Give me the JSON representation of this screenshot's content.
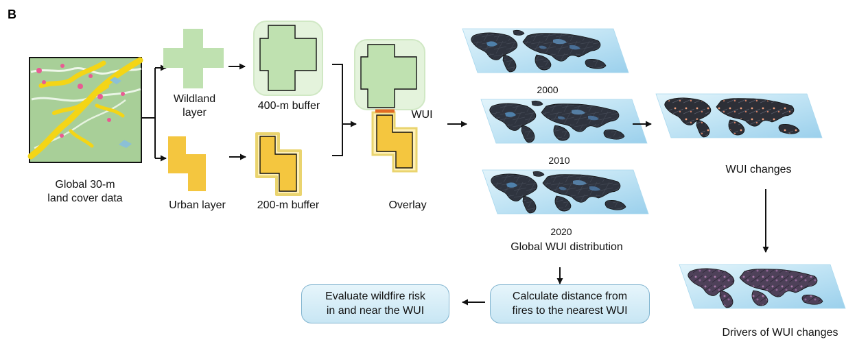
{
  "figure": {
    "panel_label": "B",
    "land_cover": {
      "label_line1": "Global 30-m",
      "label_line2": "land cover data"
    },
    "wildland": {
      "label_line1": "Wildland",
      "label_line2": "layer",
      "buffer_label": "400-m buffer"
    },
    "urban": {
      "label": "Urban layer",
      "buffer_label": "200-m buffer"
    },
    "overlay": {
      "wui_label": "WUI",
      "label": "Overlay"
    },
    "maps": {
      "years": [
        "2000",
        "2010",
        "2020"
      ],
      "distribution_label": "Global WUI distribution"
    },
    "changes": {
      "label": "WUI changes",
      "drivers_label": "Drivers of WUI changes"
    },
    "actions": {
      "distance_line1": "Calculate distance from",
      "distance_line2": "fires to the nearest WUI",
      "risk_line1": "Evaluate wildfire risk",
      "risk_line2": "in and near the WUI"
    }
  },
  "colors": {
    "wildland_fill": "#bfe1b0",
    "wildland_buffer": "#e5f4dd",
    "urban_fill": "#f4c63f",
    "urban_buffer": "#fff0b6",
    "wui_boundary": "#e26b25",
    "map_ocean": "#bfe3f4",
    "map_land": "#2f343f",
    "map_highlight": "#5c90bd",
    "process_box": "#d5eef8"
  }
}
